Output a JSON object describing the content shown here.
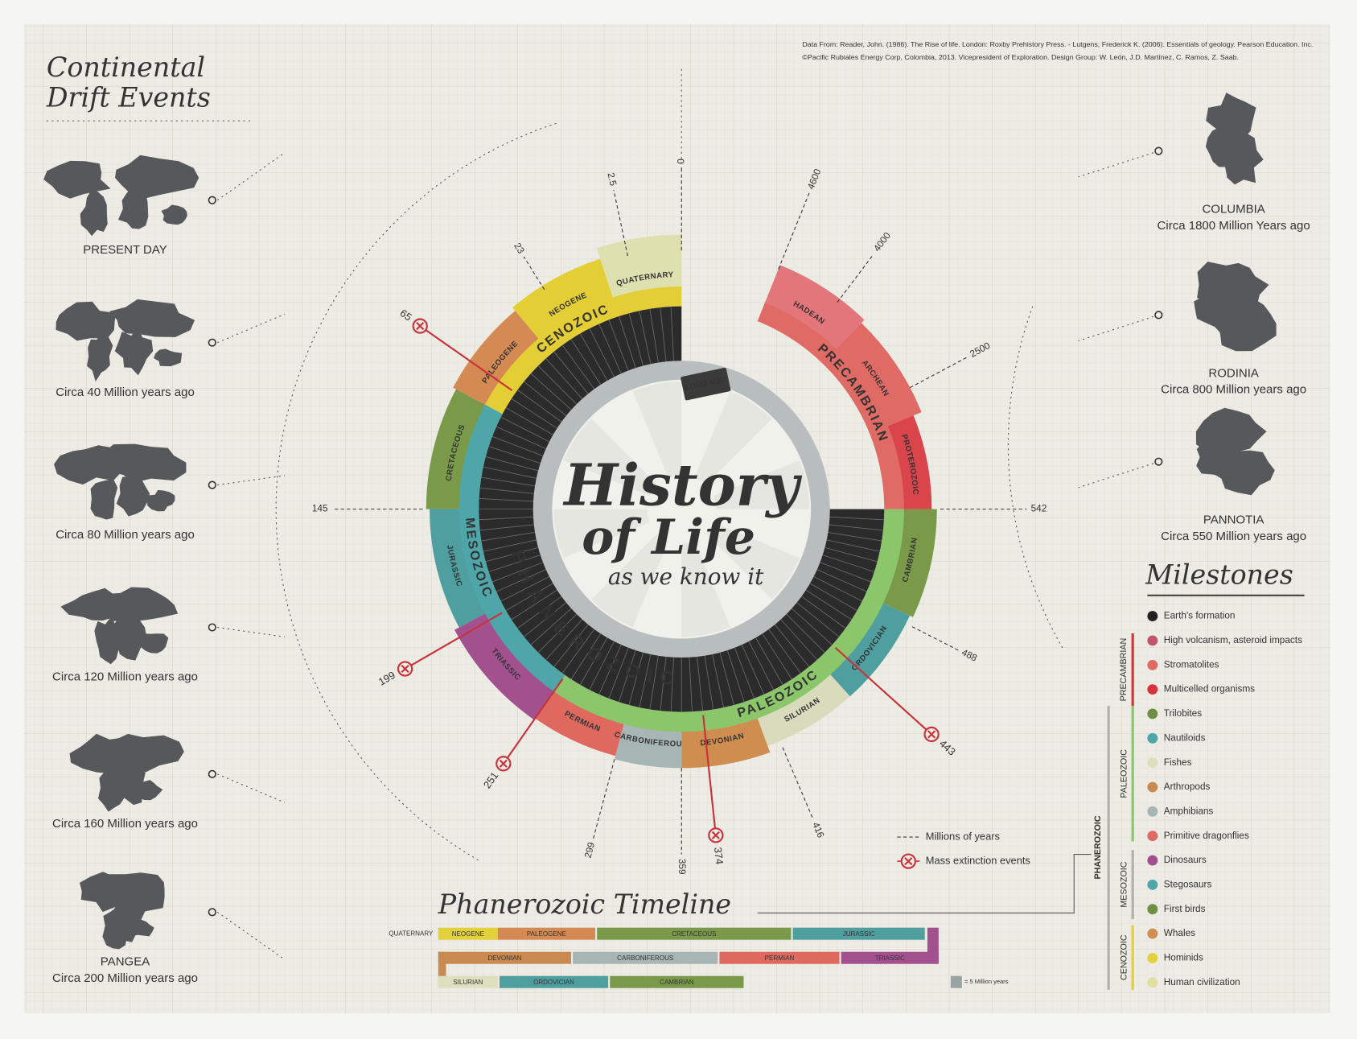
{
  "credits": {
    "line1": "Data From: Reader, John. (1986). The Rise of life. London: Roxby Prehistory Press. - Lutgens, Frederick K. (2006). Essentials of geology. Pearson Education. Inc.",
    "line2": "©Pacific Rubiales Energy Corp, Colombia, 2013. Vicepresident of Exploration. Design Group: W. León, J.D. Martínez, C. Ramos, Z. Saab."
  },
  "title": {
    "line1": "History",
    "line2": "of Life",
    "subtitle": "as we know it"
  },
  "continental_drift": {
    "title_line1": "Continental",
    "title_line2": "Drift Events",
    "maps": [
      {
        "label": "PRESENT DAY"
      },
      {
        "label": "Circa 40 Million years ago"
      },
      {
        "label": "Circa 80 Million years ago"
      },
      {
        "label": "Circa 120 Million years ago"
      },
      {
        "label": "Circa 160 Million years ago"
      },
      {
        "label": "PANGEA",
        "sublabel": "Circa 200 Million years ago"
      }
    ]
  },
  "supercontinents": [
    {
      "name": "COLUMBIA",
      "label": "Circa 1800 Million Years ago"
    },
    {
      "name": "RODINIA",
      "label": "Circa 800 Million years ago"
    },
    {
      "name": "PANNOTIA",
      "label": "Circa 550 Million years ago"
    }
  ],
  "wheel": {
    "inner_label": "PHANEROZOIC",
    "long_ago": "LONG AGO",
    "eras": [
      {
        "name": "CENOZOIC"
      },
      {
        "name": "MESOZOIC"
      },
      {
        "name": "PALEOZOIC"
      },
      {
        "name": "PRECAMBRIAN"
      }
    ],
    "periods": [
      {
        "name": "QUATERNARY"
      },
      {
        "name": "NEOGENE"
      },
      {
        "name": "PALEOGENE"
      },
      {
        "name": "CRETACEOUS"
      },
      {
        "name": "JURASSIC"
      },
      {
        "name": "TRIASSIC"
      },
      {
        "name": "PERMIAN"
      },
      {
        "name": "CARBONIFEROUS"
      },
      {
        "name": "DEVONIAN"
      },
      {
        "name": "SILURIAN"
      },
      {
        "name": "ORDOVICIAN"
      },
      {
        "name": "CAMBRIAN"
      },
      {
        "name": "PROTEROZOIC"
      },
      {
        "name": "ARCHEAN"
      },
      {
        "name": "HADEAN"
      }
    ],
    "ticks": [
      "0",
      "2.5",
      "23",
      "145",
      "299",
      "359",
      "416",
      "488",
      "542",
      "2500",
      "4000",
      "4600"
    ],
    "extinctions": [
      "65",
      "199",
      "251",
      "374",
      "443"
    ]
  },
  "legend": {
    "millions": "Millions of years",
    "extinction": "Mass extinction events"
  },
  "milestones": {
    "title": "Milestones",
    "groups": [
      {
        "label": "PRECAMBRIAN"
      },
      {
        "label": "PALEOZOIC"
      },
      {
        "label": "MESOZOIC"
      },
      {
        "label": "CENOZOIC"
      },
      {
        "label": "PHANEROZOIC"
      }
    ],
    "items": [
      {
        "label": "Earth's formation"
      },
      {
        "label": "High volcanism, asteroid impacts"
      },
      {
        "label": "Stromatolites"
      },
      {
        "label": "Multicelled organisms"
      },
      {
        "label": "Trilobites"
      },
      {
        "label": "Nautiloids"
      },
      {
        "label": "Fishes"
      },
      {
        "label": "Arthropods"
      },
      {
        "label": "Amphibians"
      },
      {
        "label": "Primitive dragonflies"
      },
      {
        "label": "Dinosaurs"
      },
      {
        "label": "Stegosaurs"
      },
      {
        "label": "First birds"
      },
      {
        "label": "Whales"
      },
      {
        "label": "Hominids"
      },
      {
        "label": "Human civilization"
      }
    ]
  },
  "timeline": {
    "title": "Phanerozoic Timeline",
    "row_label": "QUATERNARY",
    "segments": [
      {
        "label": "NEOGENE"
      },
      {
        "label": "PALEOGENE"
      },
      {
        "label": "CRETACEOUS"
      },
      {
        "label": "JURASSIC"
      },
      {
        "label": "DEVONIAN"
      },
      {
        "label": "CARBONIFEROUS"
      },
      {
        "label": "PERMIAN"
      },
      {
        "label": "TRIASSIC"
      },
      {
        "label": "SILURIAN"
      },
      {
        "label": "ORDOVICIAN"
      },
      {
        "label": "CAMBRIAN"
      }
    ],
    "scale_note": "= 5 Million years"
  }
}
